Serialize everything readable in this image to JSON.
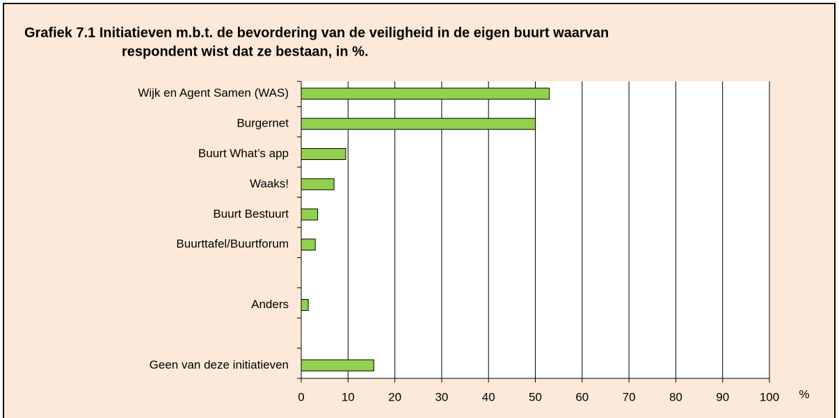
{
  "chart_data": {
    "type": "barh",
    "title": [
      "Grafiek 7.1 Initiatieven m.b.t. de bevordering van de veiligheid in de eigen buurt waarvan",
      "respondent wist dat ze bestaan, in %."
    ],
    "categories": [
      "Wijk en Agent Samen (WAS)",
      "Burgernet",
      "Buurt What’s app",
      "Waaks!",
      "Buurt Bestuurt",
      "Buurttafel/Buurtforum",
      null,
      "Anders",
      null,
      "Geen van deze initiatieven"
    ],
    "values": [
      53,
      50,
      9.5,
      7,
      3.5,
      3,
      null,
      1.5,
      null,
      15.5
    ],
    "color": "#92d050",
    "xlim": [
      0,
      100
    ],
    "xticks": [
      0,
      10,
      20,
      30,
      40,
      50,
      60,
      70,
      80,
      90,
      100
    ],
    "x_unit": "%",
    "grid": true
  }
}
